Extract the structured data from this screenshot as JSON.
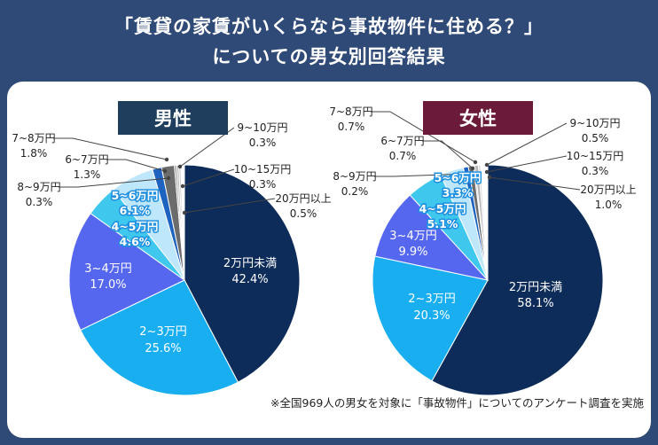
{
  "title": {
    "line1": "「賃貸の家賃がいくらなら事故物件に住める？」",
    "line2": "についての男女別回答結果"
  },
  "footnote": "※全国969人の男女を対象に「事故物件」についてのアンケート調査を実施",
  "colors": {
    "background": "#2f4a77",
    "male_badge": "#1f3d5c",
    "female_badge": "#6b1a3a",
    "slices": [
      "#0e2c59",
      "#18aef0",
      "#5566ef",
      "#3fc7ee",
      "#bfe7fb",
      "#1e63c0",
      "#6c6c6c",
      "#9a9a9a",
      "#b5b5b5",
      "#d0d0d0",
      "#ffffff"
    ]
  },
  "chart_data": [
    {
      "type": "pie",
      "title": "男性",
      "slices": [
        {
          "label": "2万円未満",
          "value": 42.4,
          "text": "42.4%"
        },
        {
          "label": "2~3万円",
          "value": 25.6,
          "text": "25.6%"
        },
        {
          "label": "3~4万円",
          "value": 17.0,
          "text": "17.0%"
        },
        {
          "label": "4~5万円",
          "value": 4.6,
          "text": "4.6%"
        },
        {
          "label": "5~6万円",
          "value": 6.1,
          "text": "6.1%"
        },
        {
          "label": "6~7万円",
          "value": 1.3,
          "text": "1.3%"
        },
        {
          "label": "7~8万円",
          "value": 1.8,
          "text": "1.8%"
        },
        {
          "label": "8~9万円",
          "value": 0.3,
          "text": "0.3%"
        },
        {
          "label": "9~10万円",
          "value": 0.3,
          "text": "0.3%"
        },
        {
          "label": "10~15万円",
          "value": 0.3,
          "text": "0.3%"
        },
        {
          "label": "20万円以上",
          "value": 0.5,
          "text": "0.5%"
        }
      ]
    },
    {
      "type": "pie",
      "title": "女性",
      "slices": [
        {
          "label": "2万円未満",
          "value": 58.1,
          "text": "58.1%"
        },
        {
          "label": "2~3万円",
          "value": 20.3,
          "text": "20.3%"
        },
        {
          "label": "3~4万円",
          "value": 9.9,
          "text": "9.9%"
        },
        {
          "label": "4~5万円",
          "value": 5.1,
          "text": "5.1%"
        },
        {
          "label": "5~6万円",
          "value": 3.3,
          "text": "3.3%"
        },
        {
          "label": "6~7万円",
          "value": 0.7,
          "text": "0.7%"
        },
        {
          "label": "7~8万円",
          "value": 0.7,
          "text": "0.7%"
        },
        {
          "label": "8~9万円",
          "value": 0.2,
          "text": "0.2%"
        },
        {
          "label": "9~10万円",
          "value": 0.5,
          "text": "0.5%"
        },
        {
          "label": "10~15万円",
          "value": 0.3,
          "text": "0.3%"
        },
        {
          "label": "20万円以上",
          "value": 1.0,
          "text": "1.0%"
        }
      ]
    }
  ]
}
